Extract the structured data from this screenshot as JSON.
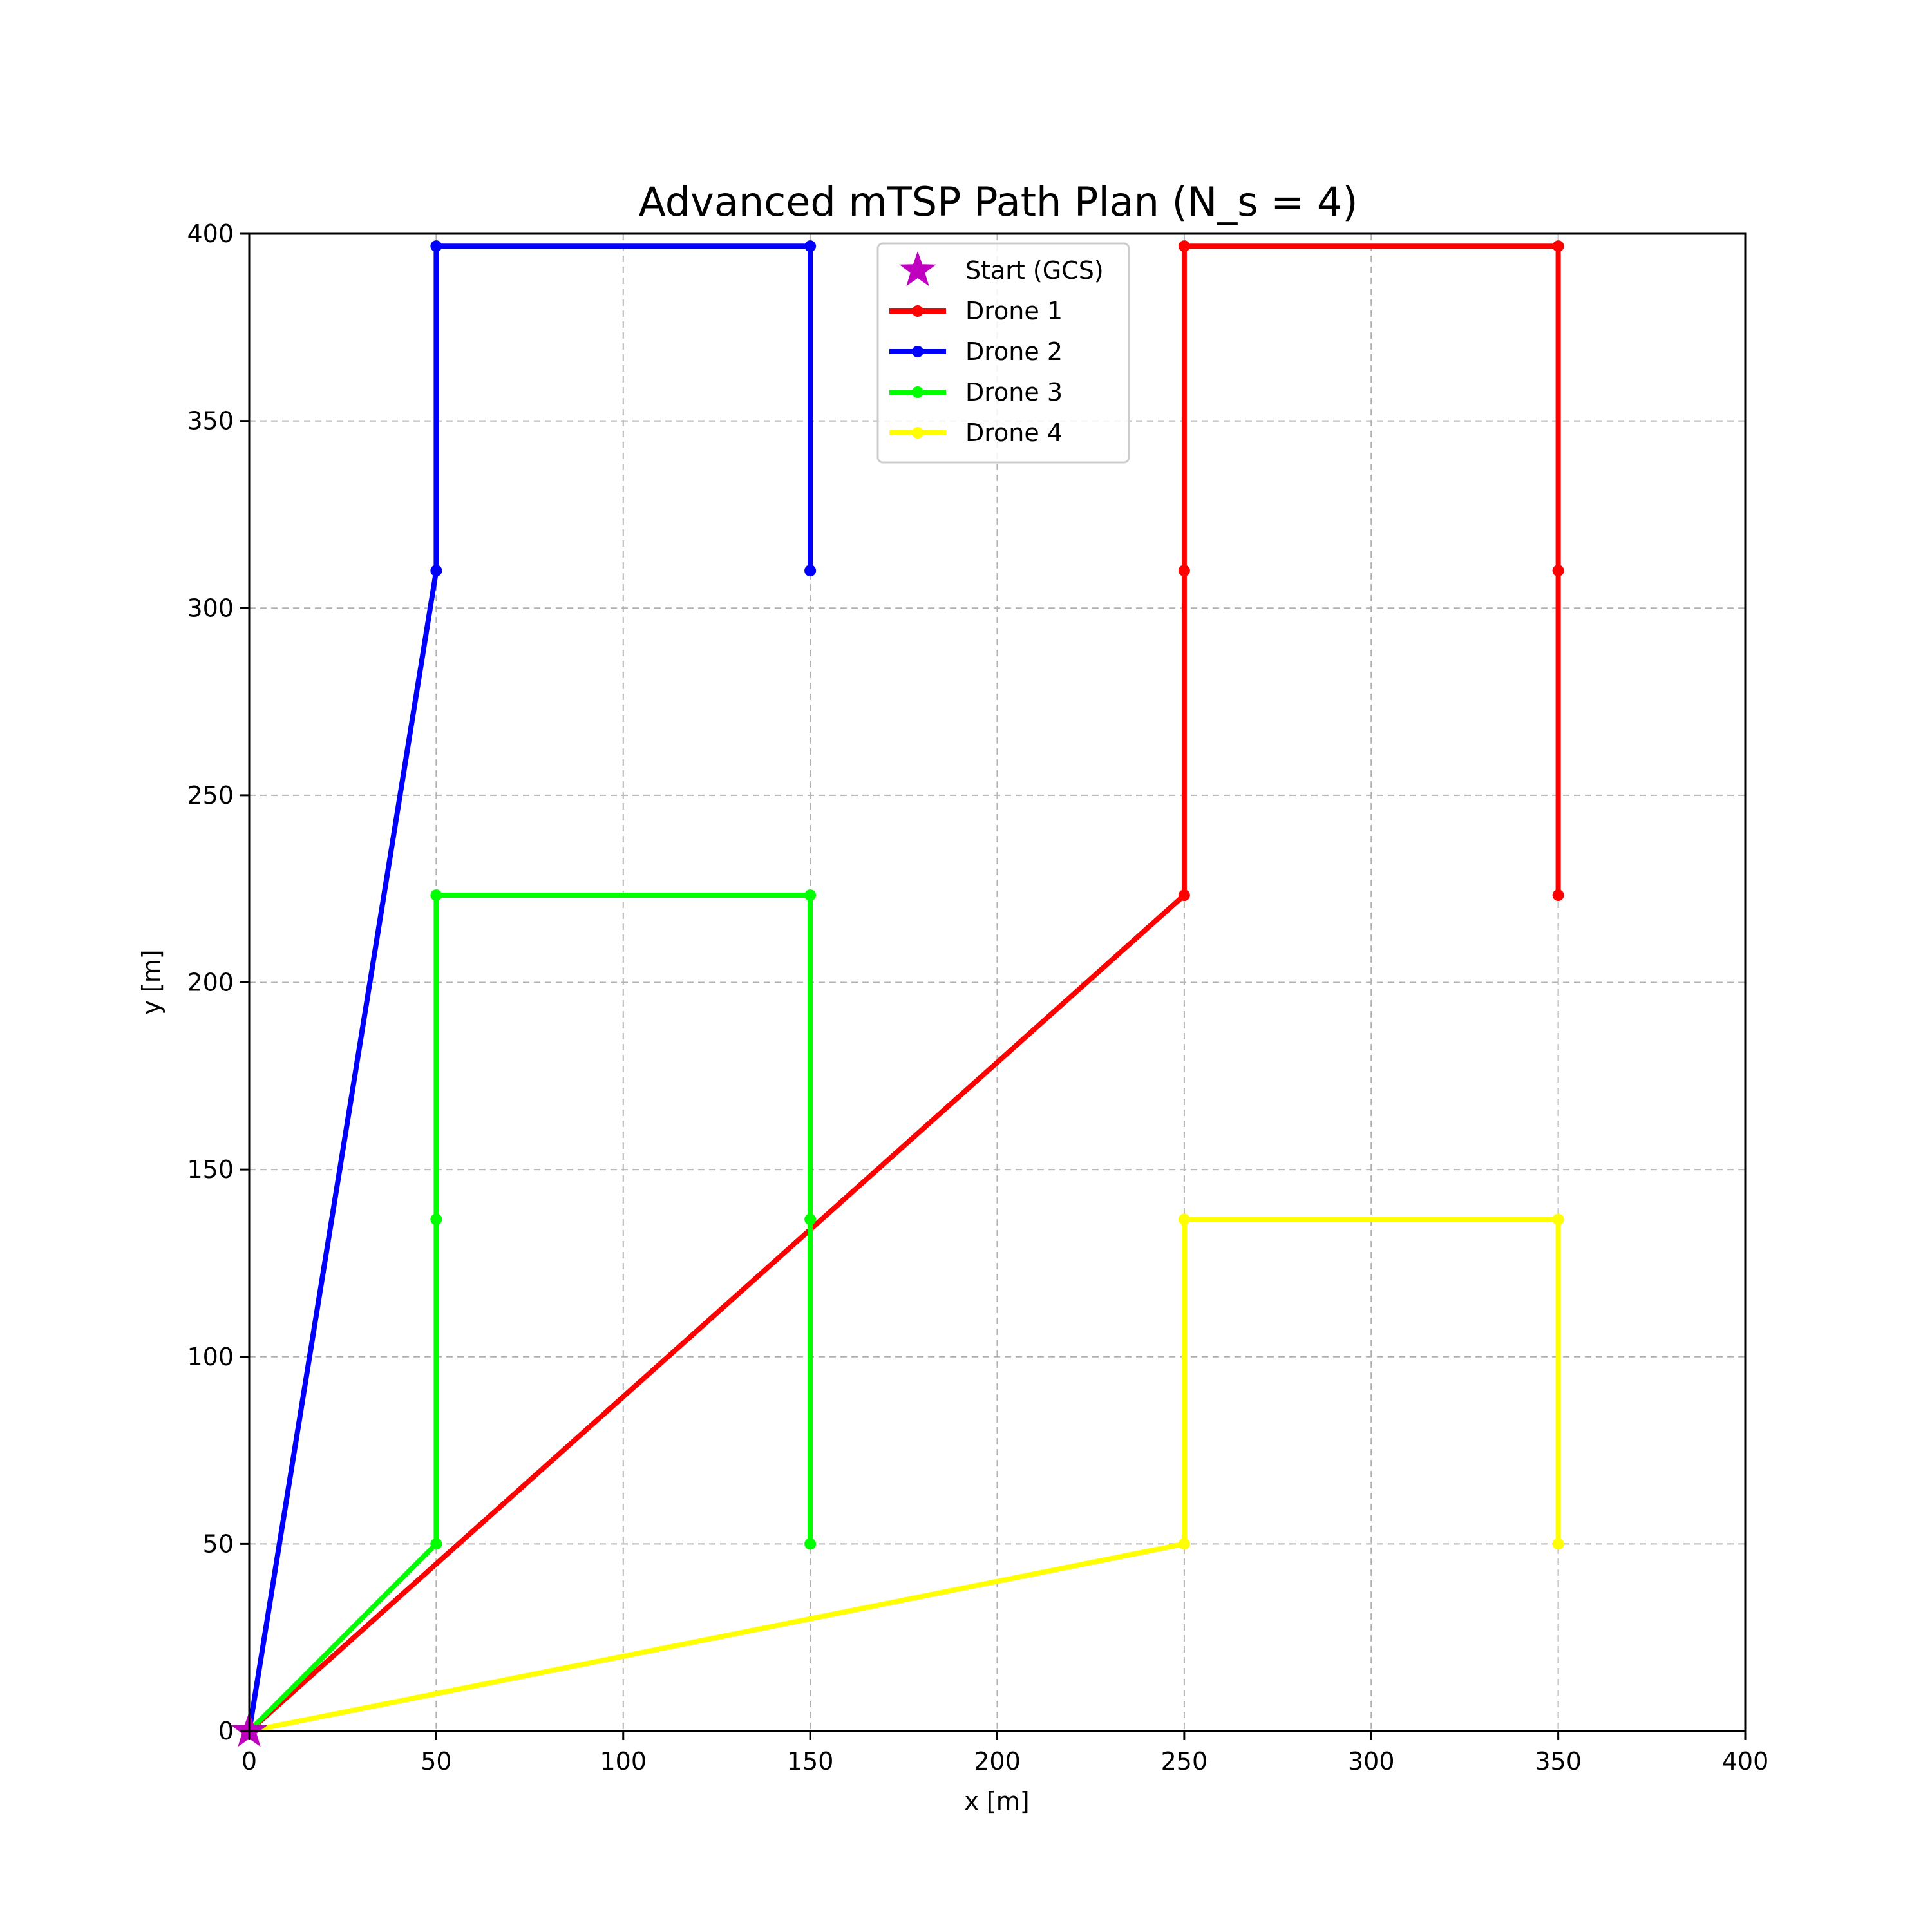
{
  "chart_data": {
    "type": "line",
    "title": "Advanced mTSP Path Plan (N_s = 4)",
    "xlabel": "x [m]",
    "ylabel": "y [m]",
    "xlim": [
      0,
      400
    ],
    "ylim": [
      0,
      400
    ],
    "xticks": [
      0,
      50,
      100,
      150,
      200,
      250,
      300,
      350,
      400
    ],
    "yticks": [
      0,
      50,
      100,
      150,
      200,
      250,
      300,
      350,
      400
    ],
    "xtick_labels": [
      "0",
      "50",
      "100",
      "150",
      "200",
      "250",
      "300",
      "350",
      "400"
    ],
    "ytick_labels": [
      "0",
      "50",
      "100",
      "150",
      "200",
      "250",
      "300",
      "350",
      "400"
    ],
    "grid": true,
    "grid_style": "dashed",
    "legend_position": "top-center",
    "start": {
      "name": "Start (GCS)",
      "x": 0,
      "y": 0,
      "color": "#bf00bf",
      "marker": "star"
    },
    "series": [
      {
        "name": "Drone 1",
        "color": "#ff0000",
        "points": [
          [
            0,
            0
          ],
          [
            250,
            223.3
          ],
          [
            250,
            310
          ],
          [
            250,
            396.7
          ],
          [
            350,
            396.7
          ],
          [
            350,
            310
          ],
          [
            350,
            223.3
          ]
        ]
      },
      {
        "name": "Drone 2",
        "color": "#0000ff",
        "points": [
          [
            0,
            0
          ],
          [
            50,
            310
          ],
          [
            50,
            396.7
          ],
          [
            150,
            396.7
          ],
          [
            150,
            310
          ]
        ]
      },
      {
        "name": "Drone 3",
        "color": "#00ff00",
        "points": [
          [
            0,
            0
          ],
          [
            50,
            50
          ],
          [
            50,
            136.7
          ],
          [
            50,
            223.3
          ],
          [
            150,
            223.3
          ],
          [
            150,
            136.7
          ],
          [
            150,
            50
          ]
        ]
      },
      {
        "name": "Drone 4",
        "color": "#ffff00",
        "points": [
          [
            0,
            0
          ],
          [
            250,
            50
          ],
          [
            250,
            136.7
          ],
          [
            350,
            136.7
          ],
          [
            350,
            50
          ]
        ]
      }
    ]
  }
}
